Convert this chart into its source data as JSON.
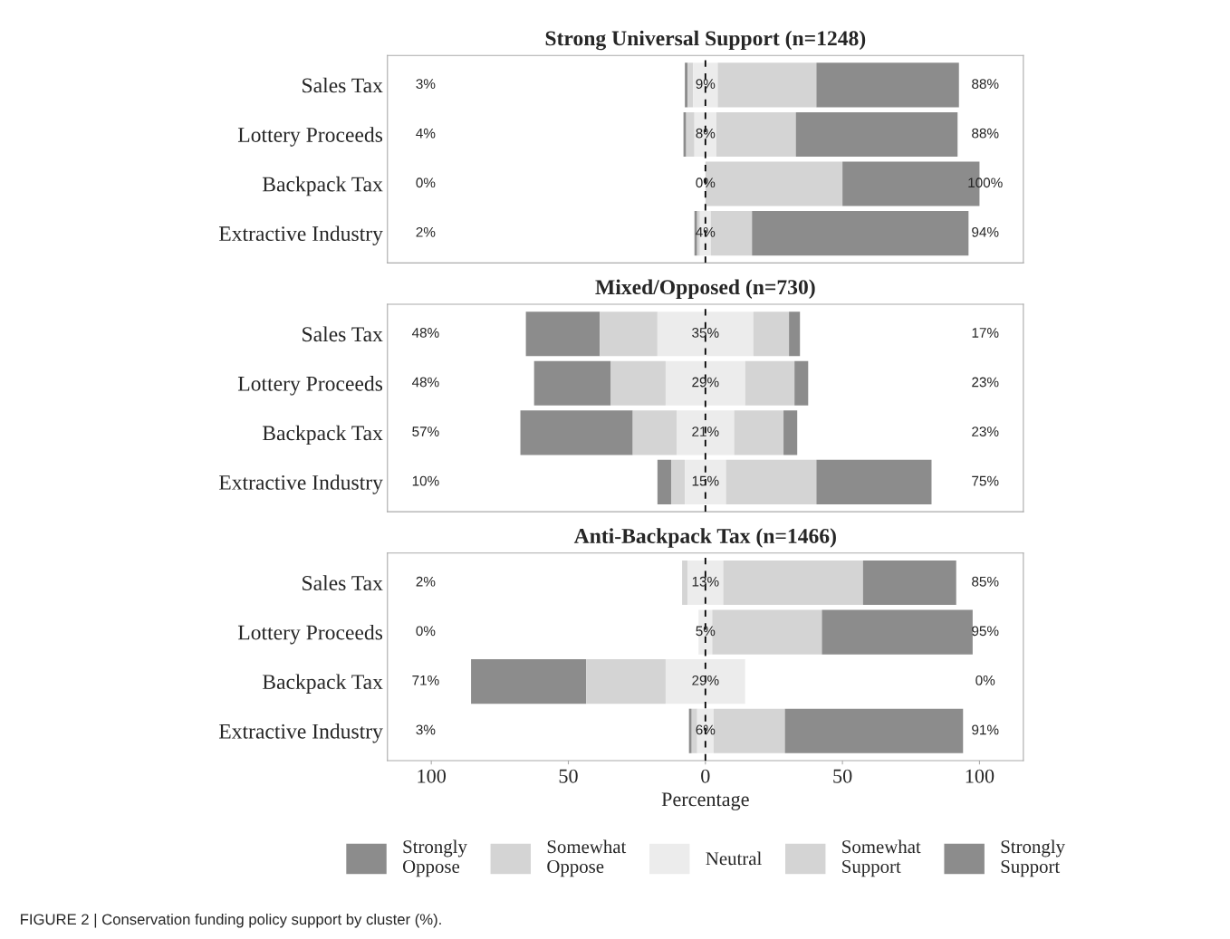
{
  "chart_data": [
    {
      "type": "bar",
      "orientation": "horizontal",
      "title": "Strong Universal Support (n=1248)",
      "categories": [
        "Sales Tax",
        "Lottery Proceeds",
        "Backpack Tax",
        "Extractive Industry"
      ],
      "xlim": [
        -116,
        116
      ],
      "tick_labels": "y",
      "grid": false,
      "ref_lines": [
        {
          "axis": "x",
          "value": 0,
          "label": null,
          "color": "#000000",
          "line_style": "dashed"
        }
      ],
      "annotations": [
        "3%",
        "88%",
        "4%",
        "88%",
        "0%",
        "100%",
        "2%",
        "94%"
      ],
      "series": [
        {
          "color": "#8c8c8c",
          "values": [
            1,
            1,
            0,
            1
          ],
          "base": [
            -7.5,
            -8,
            null,
            -4
          ]
        },
        {
          "color": "#d4d4d4",
          "values": [
            2,
            3,
            0,
            1
          ],
          "base": [
            -6.5,
            -7,
            null,
            -3
          ]
        },
        {
          "color": "#ececec",
          "values": [
            9,
            8,
            0,
            4
          ],
          "base": [
            -4.5,
            -4,
            null,
            -2
          ],
          "value_labels": [
            "9%",
            "8%",
            "0%",
            "4%"
          ]
        },
        {
          "color": "#d4d4d4",
          "values": [
            36,
            29,
            50,
            15
          ],
          "base": [
            4.5,
            4,
            0,
            2
          ]
        },
        {
          "color": "#8c8c8c",
          "values": [
            52,
            59,
            50,
            79
          ],
          "base": [
            40.5,
            33,
            50,
            17
          ]
        }
      ]
    },
    {
      "type": "bar",
      "orientation": "horizontal",
      "title": "Mixed/Opposed (n=730)",
      "categories": [
        "Sales Tax",
        "Lottery Proceeds",
        "Backpack Tax",
        "Extractive Industry"
      ],
      "xlim": [
        -116,
        116
      ],
      "tick_labels": "y",
      "grid": false,
      "ref_lines": [
        {
          "axis": "x",
          "value": 0,
          "label": null,
          "color": "#000000",
          "line_style": "dashed"
        }
      ],
      "annotations": [
        "48%",
        "17%",
        "48%",
        "23%",
        "57%",
        "23%",
        "10%",
        "75%"
      ],
      "series": [
        {
          "color": "#8c8c8c",
          "values": [
            27,
            28,
            41,
            5
          ],
          "base": [
            -65.5,
            -62.5,
            -67.5,
            -17.5
          ]
        },
        {
          "color": "#d4d4d4",
          "values": [
            21,
            20,
            16,
            5
          ],
          "base": [
            -38.5,
            -34.5,
            -26.5,
            -12.5
          ]
        },
        {
          "color": "#ececec",
          "values": [
            35,
            29,
            21,
            15
          ],
          "base": [
            -17.5,
            -14.5,
            -10.5,
            -7.5
          ],
          "value_labels": [
            "35%",
            "29%",
            "21%",
            "15%"
          ]
        },
        {
          "color": "#d4d4d4",
          "values": [
            13,
            18,
            18,
            33
          ],
          "base": [
            17.5,
            14.5,
            10.5,
            7.5
          ]
        },
        {
          "color": "#8c8c8c",
          "values": [
            4,
            5,
            5,
            42
          ],
          "base": [
            30.5,
            32.5,
            28.5,
            40.5
          ]
        }
      ]
    },
    {
      "type": "bar",
      "orientation": "horizontal",
      "title": "Anti-Backpack Tax (n=1466)",
      "categories": [
        "Sales Tax",
        "Lottery Proceeds",
        "Backpack Tax",
        "Extractive Industry"
      ],
      "xlim": [
        -116,
        116
      ],
      "xticks": [
        {
          "value": -100,
          "label": "100"
        },
        {
          "value": -50,
          "label": "50"
        },
        0,
        50,
        100
      ],
      "xlabel": "Percentage",
      "grid": false,
      "legend": "bottom",
      "ref_lines": [
        {
          "axis": "x",
          "value": 0,
          "label": null,
          "color": "#000000",
          "line_style": "dashed"
        }
      ],
      "annotations": [
        "2%",
        "85%",
        "0%",
        "95%",
        "71%",
        "0%",
        "3%",
        "91%",
        "FIGURE 2 | Conservation funding policy support by cluster (%)."
      ],
      "series": [
        {
          "name": "Strongly Oppose",
          "color": "#8c8c8c",
          "values": [
            0,
            0,
            42,
            1
          ],
          "base": [
            null,
            null,
            -85.5,
            -6
          ]
        },
        {
          "name": "Somewhat Oppose",
          "color": "#d4d4d4",
          "values": [
            2,
            0,
            29,
            2
          ],
          "base": [
            -8.5,
            null,
            -43.5,
            -5
          ]
        },
        {
          "name": "Neutral",
          "color": "#ececec",
          "values": [
            13,
            5,
            29,
            6
          ],
          "base": [
            -6.5,
            -2.5,
            -14.5,
            -3
          ],
          "value_labels": [
            "13%",
            "5%",
            "29%",
            "6%"
          ]
        },
        {
          "name": "Somewhat Support",
          "color": "#d4d4d4",
          "values": [
            51,
            40,
            0,
            26
          ],
          "base": [
            6.5,
            2.5,
            null,
            3
          ]
        },
        {
          "name": "Strongly Support",
          "color": "#8c8c8c",
          "values": [
            34,
            55,
            0,
            65
          ],
          "base": [
            57.5,
            42.5,
            null,
            29
          ]
        }
      ]
    }
  ]
}
